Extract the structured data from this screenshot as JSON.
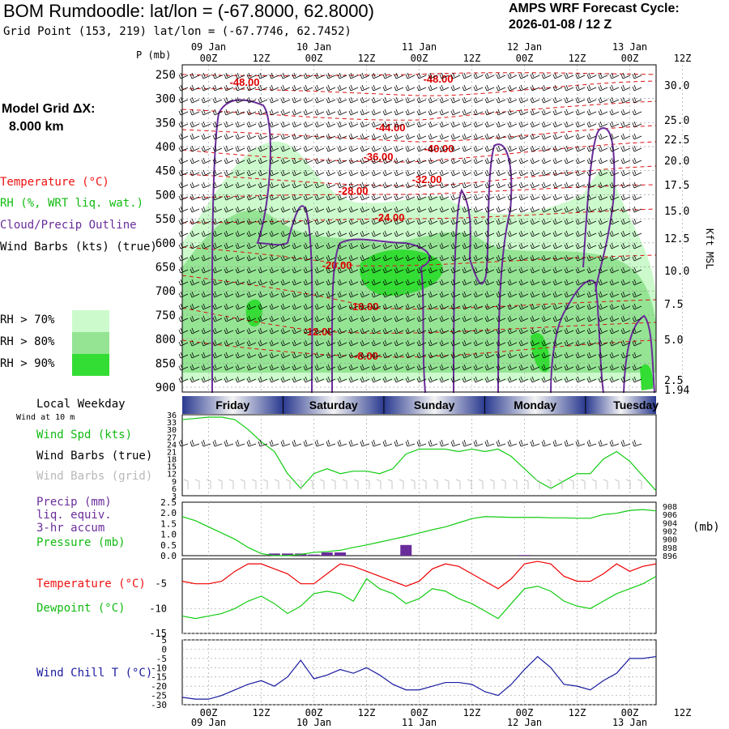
{
  "header": {
    "title": "BOM Rumdoodle:  lat/lon = (-67.8000, 62.8000)",
    "grid_point": "Grid Point (153, 219) lat/lon = (-67.7746, 62.7452)",
    "cycle_line1": "AMPS WRF Forecast Cycle:",
    "cycle_line2": "2026-01-08 / 12  Z"
  },
  "side": {
    "model_grid": "Model Grid ΔX:",
    "model_grid_value": "8.000 km",
    "legend_temperature": "Temperature (°C)",
    "legend_rh": "RH (%, WRT liq. wat.)",
    "legend_cloud": "Cloud/Precip Outline",
    "legend_wind": "Wind Barbs (kts) (true)",
    "rh70": "RH > 70%",
    "rh80": "RH > 80%",
    "rh90": "RH > 90%",
    "rh_colors": [
      "#ccfacc",
      "#94e494",
      "#33dd33"
    ],
    "local_weekday": "Local Weekday",
    "wind_at_10m": "Wind at 10 m",
    "wind_spd_label": "Wind Spd (kts)",
    "wind_barbs_true": "Wind Barbs (true)",
    "wind_barbs_grid": "Wind Barbs (grid)",
    "precip_label1": "Precip (mm)",
    "precip_label2": "liq. equiv.",
    "precip_label3": "3-hr accum",
    "pressure_label": "Pressure (mb)",
    "pressure_unit": "(mb)",
    "temperature_label": "Temperature (°C)",
    "dewpoint_label": "Dewpoint (°C)",
    "windchill_label": "Wind Chill T (°C)",
    "kft_label": "Kft MSL",
    "p_label": "P (mb)"
  },
  "chart_data": [
    {
      "type": "heatmap",
      "panel": "cross-section",
      "x_labels": [
        "00Z",
        "12Z",
        "00Z",
        "12Z",
        "00Z",
        "12Z",
        "00Z",
        "12Z",
        "00Z",
        "12Z"
      ],
      "date_labels": [
        "09 Jan",
        "10 Jan",
        "11 Jan",
        "12 Jan",
        "13 Jan"
      ],
      "y_pressure_ticks": [
        250,
        300,
        350,
        400,
        450,
        500,
        550,
        600,
        650,
        700,
        750,
        800,
        850,
        900
      ],
      "y_kft_ticks": [
        "30.0",
        "25.0",
        "22.5",
        "20.0",
        "17.5",
        "15.0",
        "12.5",
        "10.0",
        "7.5",
        "5.0",
        "2.5",
        "1.94"
      ],
      "temperature_contour_labels": [
        "-48.00",
        "-48.00",
        "-44.00",
        "-40.00",
        "-36.00",
        "-32.00",
        "-28.00",
        "-24.00",
        "-20.00",
        "-16.00",
        "-12.00",
        "-8.00"
      ]
    },
    {
      "type": "line",
      "panel": "wind-speed",
      "ylabel": "Wind Spd (kts)",
      "y_ticks": [
        3,
        6,
        9,
        12,
        15,
        18,
        21,
        24,
        27,
        30,
        33,
        36
      ],
      "ylim": [
        3,
        36
      ],
      "weekdays": [
        "Friday",
        "Saturday",
        "Sunday",
        "Monday",
        "Tuesday"
      ],
      "hours": [
        0,
        3,
        6,
        9,
        12,
        15,
        18,
        21,
        24,
        27,
        30,
        33,
        36,
        39,
        42,
        45,
        48,
        51,
        54,
        57,
        60,
        63,
        66,
        69,
        72,
        75,
        78,
        81,
        84,
        87,
        90,
        93,
        96,
        99,
        102,
        105,
        108
      ],
      "values": [
        34,
        34.5,
        35,
        35,
        34,
        30,
        25,
        21,
        12,
        6,
        12,
        14,
        12,
        13,
        13,
        12,
        14,
        20,
        22,
        22,
        22,
        21,
        22,
        21,
        22,
        19,
        14,
        9,
        6,
        9,
        12,
        12,
        18,
        21,
        17,
        11,
        5
      ]
    },
    {
      "type": "bar",
      "panel": "precip-pressure",
      "precip_ylabel": "Precip (mm)",
      "precip_ticks": [
        0.0,
        0.5,
        1.0,
        1.5,
        2.0,
        2.5
      ],
      "precip_ylim": [
        0,
        2.5
      ],
      "precip_hours": [
        21,
        24,
        27,
        30,
        33,
        36,
        51,
        78
      ],
      "precip_values": [
        0.1,
        0.1,
        0.1,
        0.05,
        0.15,
        0.15,
        0.5,
        0.03
      ],
      "pressure_ylabel": "Pressure (mb)",
      "pressure_ticks": [
        896,
        898,
        900,
        902,
        904,
        906,
        908
      ],
      "pressure_ylim": [
        896,
        909
      ],
      "pressure_hours": [
        0,
        3,
        6,
        9,
        12,
        15,
        18,
        21,
        24,
        27,
        30,
        33,
        36,
        39,
        42,
        45,
        48,
        51,
        54,
        57,
        60,
        63,
        66,
        69,
        72,
        75,
        78,
        81,
        84,
        87,
        90,
        93,
        96,
        99,
        102,
        105,
        108
      ],
      "pressure_values": [
        905.5,
        904.5,
        903,
        901.5,
        900,
        898,
        896.5,
        896,
        896,
        896.3,
        896.8,
        897,
        897.3,
        898,
        898.6,
        899.3,
        900,
        900.7,
        901.5,
        902.3,
        903,
        904,
        905,
        905.5,
        905.4,
        905.3,
        905.3,
        905.3,
        905.2,
        905.2,
        905.1,
        905.1,
        906,
        906.3,
        907,
        907.2,
        906.9
      ]
    },
    {
      "type": "line",
      "panel": "temperature-dewpoint",
      "y_ticks": [
        -15,
        -10,
        -5
      ],
      "ylim": [
        -15,
        0
      ],
      "hours": [
        0,
        3,
        6,
        9,
        12,
        15,
        18,
        21,
        24,
        27,
        30,
        33,
        36,
        39,
        42,
        45,
        48,
        51,
        54,
        57,
        60,
        63,
        66,
        69,
        72,
        75,
        78,
        81,
        84,
        87,
        90,
        93,
        96,
        99,
        102,
        105,
        108
      ],
      "series": [
        {
          "name": "Temperature (°C)",
          "color": "#ee0000",
          "values": [
            -4.5,
            -5,
            -5,
            -4.5,
            -2.5,
            -1,
            -1,
            -2,
            -3,
            -5,
            -5,
            -3,
            -1,
            -1.5,
            -2.5,
            -3.5,
            -4.5,
            -5.5,
            -4.5,
            -2,
            -1,
            -1.5,
            -3,
            -4.5,
            -6,
            -4,
            -1,
            -0.5,
            -1,
            -3.5,
            -4.5,
            -4.5,
            -3,
            -1,
            -2.5,
            -1.5,
            -1
          ]
        },
        {
          "name": "Dewpoint (°C)",
          "color": "#11cc11",
          "values": [
            -11.5,
            -12,
            -11.5,
            -11,
            -10,
            -8.5,
            -7.5,
            -9,
            -11,
            -9.5,
            -7,
            -6.5,
            -7,
            -8.5,
            -4,
            -6,
            -7,
            -9,
            -8,
            -6,
            -6.5,
            -8,
            -9,
            -10.5,
            -12,
            -9,
            -6,
            -5.5,
            -6.5,
            -8.5,
            -9.5,
            -10,
            -8.5,
            -7,
            -6,
            -5,
            -3.5
          ]
        }
      ]
    },
    {
      "type": "line",
      "panel": "wind-chill",
      "ylabel": "Wind Chill T (°C)",
      "y_ticks": [
        -30,
        -25,
        -20,
        -15,
        -10,
        -5,
        0,
        5
      ],
      "ylim": [
        -30,
        5
      ],
      "hours": [
        0,
        3,
        6,
        9,
        12,
        15,
        18,
        21,
        24,
        27,
        30,
        33,
        36,
        39,
        42,
        45,
        48,
        51,
        54,
        57,
        60,
        63,
        66,
        69,
        72,
        75,
        78,
        81,
        84,
        87,
        90,
        93,
        96,
        99,
        102,
        105,
        108
      ],
      "values": [
        -26,
        -27,
        -27,
        -25,
        -22,
        -19,
        -17,
        -20,
        -15,
        -6,
        -16,
        -14,
        -11,
        -13,
        -10,
        -14,
        -19,
        -22,
        -22,
        -20,
        -18,
        -18,
        -19,
        -23,
        -25,
        -19,
        -11,
        -4,
        -10,
        -19,
        -20,
        -22,
        -17,
        -13,
        -5,
        -5,
        -4
      ]
    }
  ]
}
